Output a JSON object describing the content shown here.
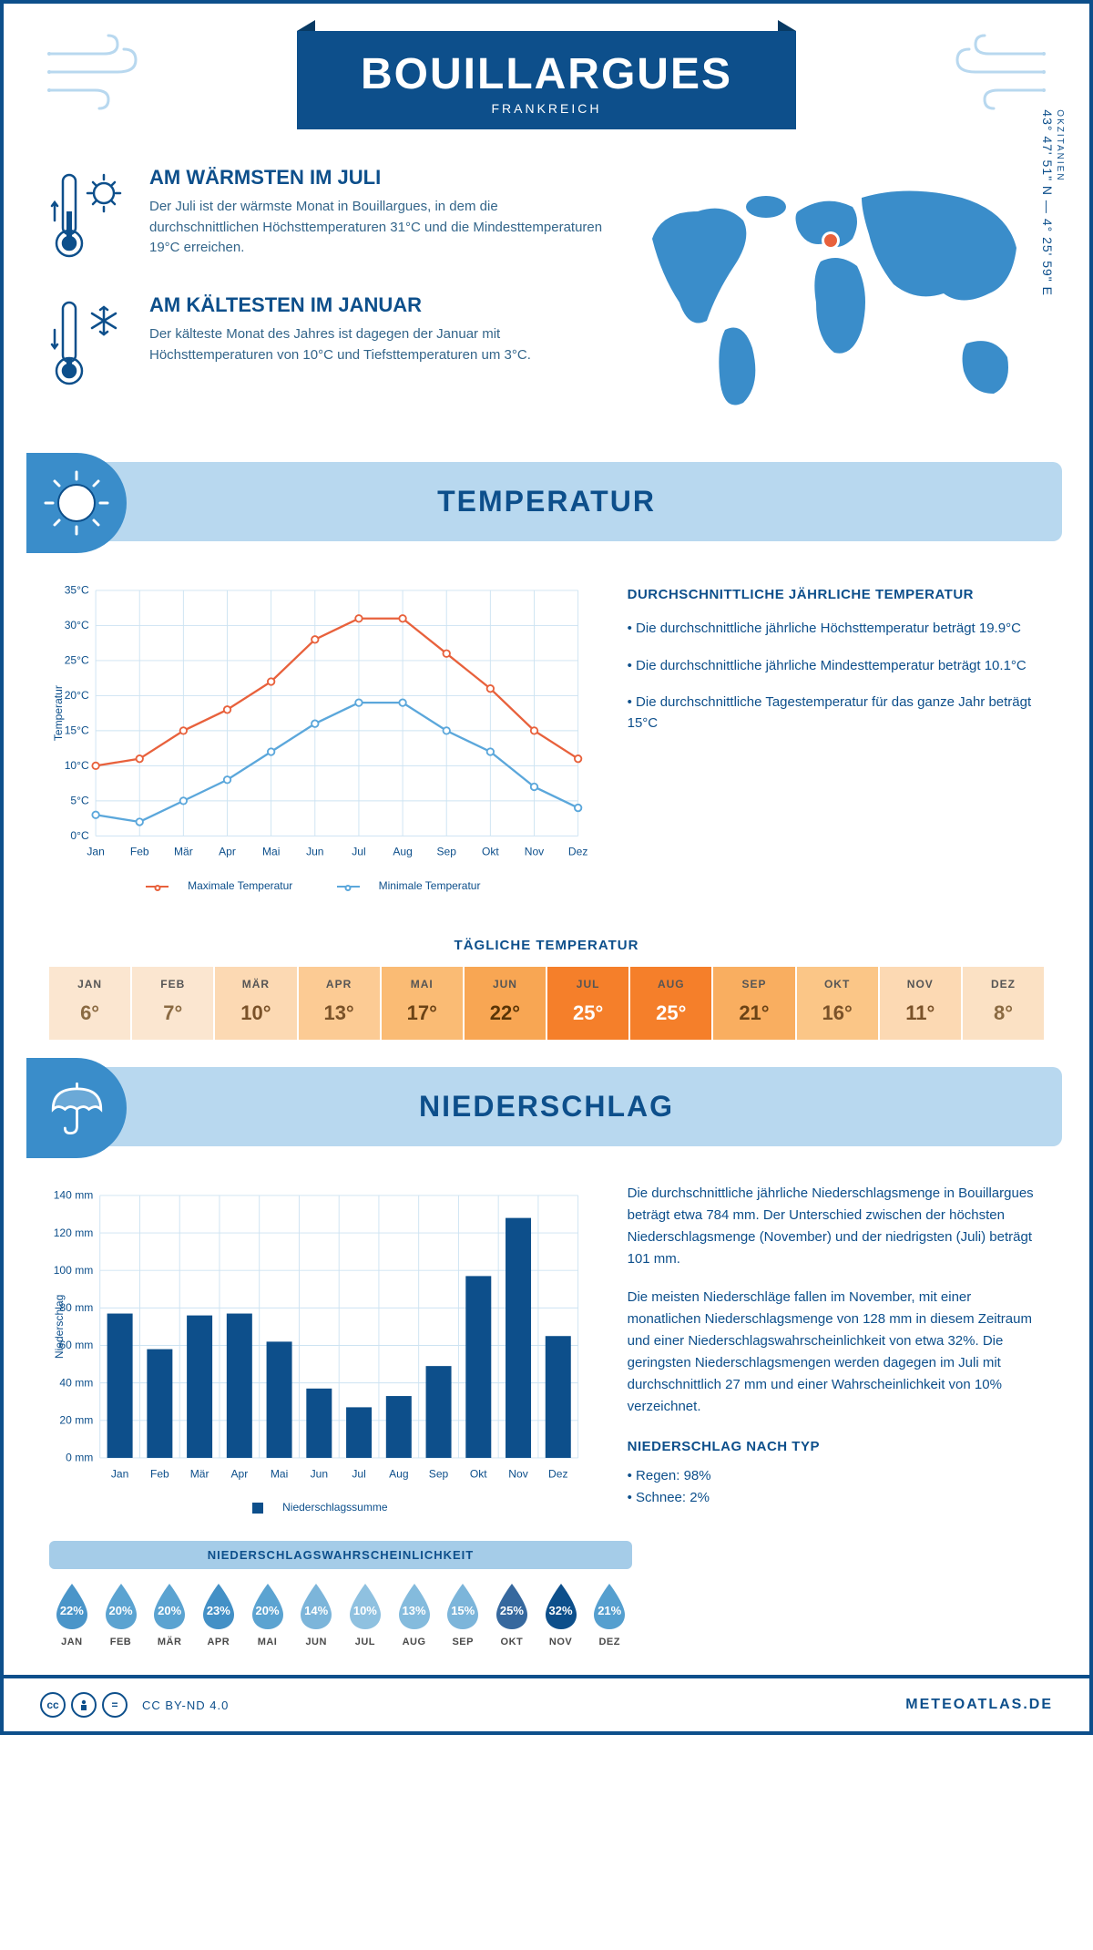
{
  "colors": {
    "brand": "#0d4f8b",
    "headerBg": "#b8d8ef",
    "accent": "#3a8dca",
    "seriesMax": "#e8613c",
    "seriesMin": "#5ba7db",
    "grid": "#cde3f2"
  },
  "header": {
    "city": "BOUILLARGUES",
    "country": "FRANKREICH",
    "coords": "43° 47' 51\" N — 4° 25' 59\" E",
    "region": "OKZITANIEN"
  },
  "intro": {
    "warm": {
      "title": "AM WÄRMSTEN IM JULI",
      "text": "Der Juli ist der wärmste Monat in Bouillargues, in dem die durchschnittlichen Höchsttemperaturen 31°C und die Mindesttemperaturen 19°C erreichen."
    },
    "cold": {
      "title": "AM KÄLTESTEN IM JANUAR",
      "text": "Der kälteste Monat des Jahres ist dagegen der Januar mit Höchsttemperaturen von 10°C und Tiefsttemperaturen um 3°C."
    }
  },
  "temperature": {
    "sectionTitle": "TEMPERATUR",
    "months": [
      "Jan",
      "Feb",
      "Mär",
      "Apr",
      "Mai",
      "Jun",
      "Jul",
      "Aug",
      "Sep",
      "Okt",
      "Nov",
      "Dez"
    ],
    "max_series": [
      10,
      11,
      15,
      18,
      22,
      28,
      31,
      31,
      26,
      21,
      15,
      11
    ],
    "min_series": [
      3,
      2,
      5,
      8,
      12,
      16,
      19,
      19,
      15,
      12,
      7,
      4
    ],
    "ylim": [
      0,
      35
    ],
    "ytick_step": 5,
    "axis_label": "Temperatur",
    "legend": {
      "max": "Maximale Temperatur",
      "min": "Minimale Temperatur"
    },
    "notesTitle": "DURCHSCHNITTLICHE JÄHRLICHE TEMPERATUR",
    "bullets": [
      "• Die durchschnittliche jährliche Höchsttemperatur beträgt 19.9°C",
      "• Die durchschnittliche jährliche Mindesttemperatur beträgt 10.1°C",
      "• Die durchschnittliche Tagestemperatur für das ganze Jahr beträgt 15°C"
    ],
    "dailyTitle": "TÄGLICHE TEMPERATUR",
    "dailyMonths": [
      "JAN",
      "FEB",
      "MÄR",
      "APR",
      "MAI",
      "JUN",
      "JUL",
      "AUG",
      "SEP",
      "OKT",
      "NOV",
      "DEZ"
    ],
    "dailyValues": [
      "6°",
      "7°",
      "10°",
      "13°",
      "17°",
      "22°",
      "25°",
      "25°",
      "21°",
      "16°",
      "11°",
      "8°"
    ],
    "dailyBg": [
      "#fbe6d0",
      "#fbe6d0",
      "#fcd9b3",
      "#fccb94",
      "#fabb74",
      "#f8a653",
      "#f57f2a",
      "#f57f2a",
      "#f9ae60",
      "#fbc687",
      "#fcd9b3",
      "#fbe1c4"
    ],
    "dailyFg": [
      "#8a6a42",
      "#8a6a42",
      "#7a5229",
      "#7a5229",
      "#6b4316",
      "#5a3507",
      "#ffffff",
      "#ffffff",
      "#6b4316",
      "#7a5229",
      "#7a5229",
      "#8a6a42"
    ]
  },
  "precip": {
    "sectionTitle": "NIEDERSCHLAG",
    "months": [
      "Jan",
      "Feb",
      "Mär",
      "Apr",
      "Mai",
      "Jun",
      "Jul",
      "Aug",
      "Sep",
      "Okt",
      "Nov",
      "Dez"
    ],
    "values": [
      77,
      58,
      76,
      77,
      62,
      37,
      27,
      33,
      49,
      97,
      128,
      65
    ],
    "ylim": [
      0,
      140
    ],
    "ytick_step": 20,
    "axis_label": "Niederschlag",
    "legendLabel": "Niederschlagssumme",
    "text1": "Die durchschnittliche jährliche Niederschlagsmenge in Bouillargues beträgt etwa 784 mm. Der Unterschied zwischen der höchsten Niederschlagsmenge (November) und der niedrigsten (Juli) beträgt 101 mm.",
    "text2": "Die meisten Niederschläge fallen im November, mit einer monatlichen Niederschlagsmenge von 128 mm in diesem Zeitraum und einer Niederschlagswahrscheinlichkeit von etwa 32%. Die geringsten Niederschlagsmengen werden dagegen im Juli mit durchschnittlich 27 mm und einer Wahrscheinlichkeit von 10% verzeichnet.",
    "typeTitle": "NIEDERSCHLAG NACH TYP",
    "typeBullets": [
      "• Regen: 98%",
      "• Schnee: 2%"
    ],
    "probTitle": "NIEDERSCHLAGSWAHRSCHEINLICHKEIT",
    "probMonths": [
      "JAN",
      "FEB",
      "MÄR",
      "APR",
      "MAI",
      "JUN",
      "JUL",
      "AUG",
      "SEP",
      "OKT",
      "NOV",
      "DEZ"
    ],
    "probValues": [
      "22%",
      "20%",
      "20%",
      "23%",
      "20%",
      "14%",
      "10%",
      "13%",
      "15%",
      "25%",
      "32%",
      "21%"
    ],
    "probColors": [
      "#4a95c9",
      "#5ba3d1",
      "#5ba3d1",
      "#4390c6",
      "#5ba3d1",
      "#7cb5da",
      "#8fc1e0",
      "#84bbdd",
      "#7cb5da",
      "#36689e",
      "#0d4f8b",
      "#559fcf"
    ]
  },
  "footer": {
    "license": "CC BY-ND 4.0",
    "site": "METEOATLAS.DE"
  }
}
